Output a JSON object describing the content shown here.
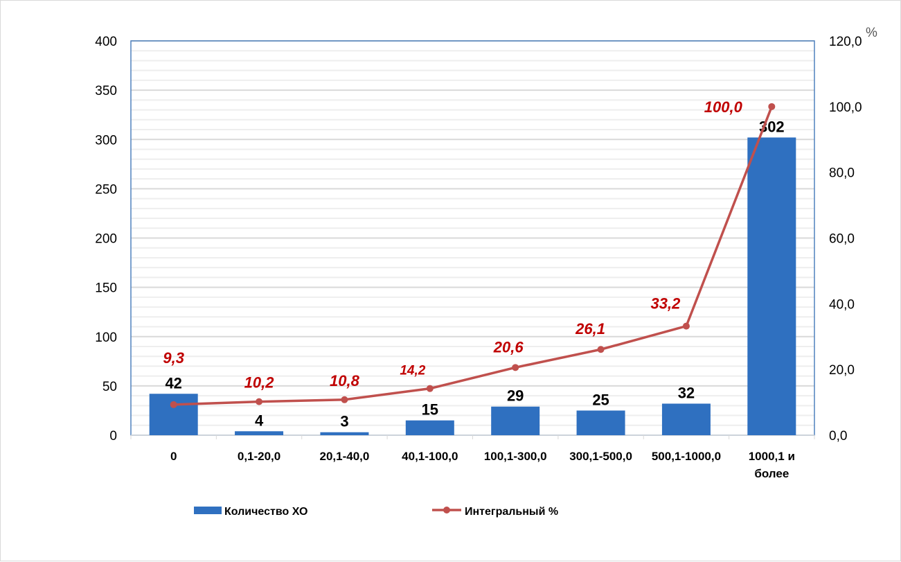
{
  "chart_data": {
    "type": "bar+line",
    "categories": [
      "0",
      "0,1-20,0",
      "20,1-40,0",
      "40,1-100,0",
      "100,1-300,0",
      "300,1-500,0",
      "500,1-1000,0",
      "1000,1 и|более"
    ],
    "series": [
      {
        "name": "Количество ХО",
        "type": "bar",
        "axis": "left",
        "values": [
          42,
          4,
          3,
          15,
          29,
          25,
          32,
          302
        ],
        "labels": [
          "42",
          "4",
          "3",
          "15",
          "29",
          "25",
          "32",
          "302"
        ],
        "color": "#2f70c0"
      },
      {
        "name": "Интегральный %",
        "type": "line",
        "axis": "right",
        "values": [
          9.3,
          10.2,
          10.8,
          14.2,
          20.6,
          26.1,
          33.2,
          100.0
        ],
        "labels": [
          "9,3",
          "10,2",
          "10,8",
          "14,2",
          "20,6",
          "26,1",
          "33,2",
          "100,0"
        ],
        "color": "#c0504d",
        "label_color": "#c00000"
      }
    ],
    "left_axis": {
      "range": [
        0,
        400
      ],
      "ticks": [
        "0",
        "50",
        "100",
        "150",
        "200",
        "250",
        "300",
        "350",
        "400"
      ]
    },
    "right_axis": {
      "range": [
        0,
        120
      ],
      "ticks": [
        "0,0",
        "20,0",
        "40,0",
        "60,0",
        "80,0",
        "100,0",
        "120,0"
      ],
      "unit_label": "%"
    },
    "grid": true,
    "legend": "bottom"
  }
}
